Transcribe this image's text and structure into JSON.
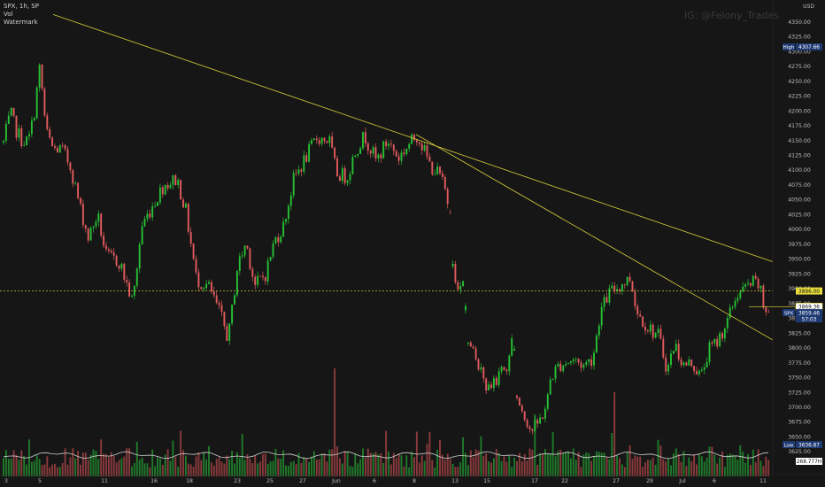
{
  "header": {
    "symbol_line": "SPX, 1h, SP",
    "indicator_vol": "Vol",
    "indicator_watermark": "Watermark",
    "watermark_text": "IG: @Felony_Trades",
    "currency": "USD"
  },
  "chart_data": {
    "type": "candlestick",
    "symbol": "SPX",
    "timeframe": "1h",
    "ylim": [
      3600,
      4362.5
    ],
    "y_ticks": [
      "4350.00",
      "4325.00",
      "4300.00",
      "4275.00",
      "4250.00",
      "4225.00",
      "4200.00",
      "4175.00",
      "4150.00",
      "4125.00",
      "4100.00",
      "4075.00",
      "4050.00",
      "4025.00",
      "4000.00",
      "3975.00",
      "3950.00",
      "3925.00",
      "3900.00",
      "3875.00",
      "3850.00",
      "3825.00",
      "3800.00",
      "3775.00",
      "3750.00",
      "3725.00",
      "3700.00",
      "3675.00",
      "3650.00",
      "3625.00"
    ],
    "x_ticks": [
      "3",
      "5",
      "11",
      "16",
      "18",
      "23",
      "25",
      "27",
      "Jun",
      "6",
      "8",
      "13",
      "15",
      "17",
      "22",
      "27",
      "29",
      "Jul",
      "6",
      "11"
    ],
    "anchors": [
      [
        0,
        4120
      ],
      [
        6,
        4160
      ],
      [
        12,
        4195
      ],
      [
        18,
        4168
      ],
      [
        25,
        4150
      ],
      [
        32,
        4148
      ],
      [
        38,
        4190
      ],
      [
        45,
        4275
      ],
      [
        52,
        4165
      ],
      [
        60,
        4135
      ],
      [
        70,
        4135
      ],
      [
        80,
        4105
      ],
      [
        90,
        4040
      ],
      [
        100,
        3985
      ],
      [
        110,
        4025
      ],
      [
        120,
        3955
      ],
      [
        135,
        3945
      ],
      [
        150,
        3875
      ],
      [
        160,
        4005
      ],
      [
        172,
        4040
      ],
      [
        185,
        4075
      ],
      [
        200,
        4085
      ],
      [
        210,
        4030
      ],
      [
        222,
        3915
      ],
      [
        235,
        3905
      ],
      [
        248,
        3860
      ],
      [
        258,
        3815
      ],
      [
        268,
        3935
      ],
      [
        278,
        3978
      ],
      [
        288,
        3905
      ],
      [
        300,
        3925
      ],
      [
        310,
        3980
      ],
      [
        320,
        4005
      ],
      [
        332,
        4085
      ],
      [
        345,
        4120
      ],
      [
        358,
        4155
      ],
      [
        372,
        4150
      ],
      [
        380,
        4095
      ],
      [
        392,
        4088
      ],
      [
        402,
        4135
      ],
      [
        412,
        4158
      ],
      [
        425,
        4115
      ],
      [
        438,
        4150
      ],
      [
        450,
        4120
      ],
      [
        460,
        4140
      ],
      [
        472,
        4160
      ],
      [
        485,
        4110
      ],
      [
        497,
        4090
      ],
      [
        504,
        4060
      ],
      [
        510,
        4020
      ],
      [
        511,
        3938
      ],
      [
        518,
        3905
      ],
      [
        524,
        3920
      ],
      [
        528,
        3810
      ],
      [
        536,
        3790
      ],
      [
        550,
        3735
      ],
      [
        562,
        3745
      ],
      [
        568,
        3760
      ],
      [
        575,
        3780
      ],
      [
        580,
        3825
      ],
      [
        584,
        3718
      ],
      [
        592,
        3690
      ],
      [
        600,
        3660
      ],
      [
        608,
        3672
      ],
      [
        618,
        3705
      ],
      [
        622,
        3750
      ],
      [
        632,
        3772
      ],
      [
        648,
        3780
      ],
      [
        660,
        3770
      ],
      [
        670,
        3785
      ],
      [
        678,
        3860
      ],
      [
        688,
        3892
      ],
      [
        700,
        3905
      ],
      [
        712,
        3918
      ],
      [
        720,
        3860
      ],
      [
        732,
        3835
      ],
      [
        744,
        3820
      ],
      [
        754,
        3762
      ],
      [
        762,
        3808
      ],
      [
        772,
        3770
      ],
      [
        782,
        3775
      ],
      [
        792,
        3750
      ],
      [
        800,
        3795
      ],
      [
        810,
        3810
      ],
      [
        822,
        3845
      ],
      [
        832,
        3890
      ],
      [
        842,
        3900
      ],
      [
        850,
        3910
      ],
      [
        858,
        3905
      ],
      [
        862,
        3870
      ],
      [
        870,
        3860
      ]
    ],
    "trendlines": [
      {
        "from": [
          60,
          4362.5
        ],
        "to": [
          932,
          3915
        ]
      },
      {
        "from": [
          470,
          4160
        ],
        "to": [
          900,
          3790
        ]
      }
    ],
    "reference_lines": [
      {
        "value": 3896.0,
        "color": "#e6dc3a",
        "style": "dashed"
      }
    ],
    "volume_ma": 268.777,
    "price_labels": {
      "high": {
        "tag": "High",
        "value": "4307.66"
      },
      "low": {
        "tag": "Low",
        "value": "3636.87"
      },
      "current_level": "3896.00",
      "prev_close": "3869.36",
      "spx": {
        "tag": "SPX",
        "value": "3859.46",
        "countdown": "57:03"
      },
      "volume": "268.777H"
    },
    "colors": {
      "background": "#161616",
      "up": "#26c134",
      "down": "#e35a5d",
      "trendline": "#d4cc3a",
      "label_blue": "#1f3a73",
      "label_yellow": "#e6dc3a"
    }
  }
}
